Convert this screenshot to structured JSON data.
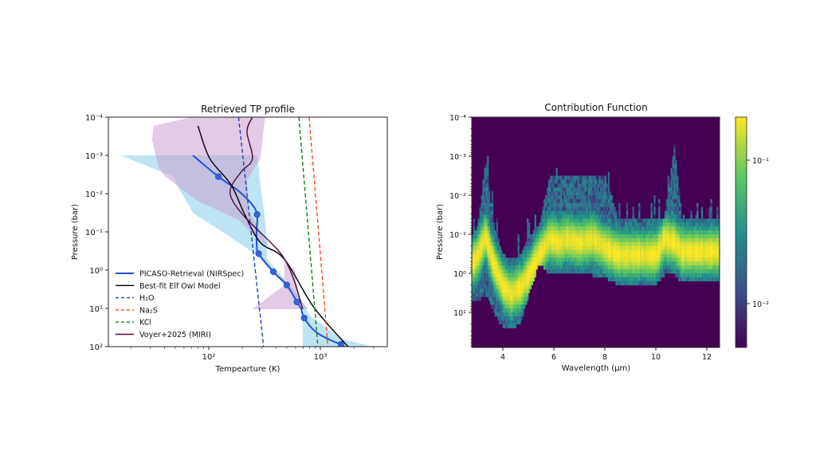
{
  "chart_data": [
    {
      "type": "line",
      "title": "Retrieved TP profile",
      "xlabel": "Tempearture (K)",
      "ylabel": "Pressure (bar)",
      "xscale": "log",
      "yscale": "log",
      "y_inverted": true,
      "xlim": [
        12.6,
        3980
      ],
      "ylim": [
        0.0001,
        100
      ],
      "x_ticks": [
        {
          "value": 100,
          "label": "10²"
        },
        {
          "value": 1000,
          "label": "10³"
        }
      ],
      "y_ticks": [
        {
          "value": 0.0001,
          "label": "10⁻⁴"
        },
        {
          "value": 0.001,
          "label": "10⁻³"
        },
        {
          "value": 0.01,
          "label": "10⁻²"
        },
        {
          "value": 0.1,
          "label": "10⁻¹"
        },
        {
          "value": 1,
          "label": "10⁰"
        },
        {
          "value": 10,
          "label": "10¹"
        },
        {
          "value": 100,
          "label": "10²"
        }
      ],
      "grid": false,
      "legend_position": "lower-left",
      "bands": [
        {
          "series": "PICASO-Retrieval (NIRSpec)",
          "color": "#87ceeb",
          "polygon_T_P": [
            [
              16.3,
              0.001
            ],
            [
              48.5,
              0.0036
            ],
            [
              53,
              0.0068
            ],
            [
              73,
              0.033
            ],
            [
              158,
              0.14
            ],
            [
              258,
              0.37
            ],
            [
              480,
              2.5
            ],
            [
              696,
              10
            ],
            [
              696,
              100
            ],
            [
              2900,
              100
            ],
            [
              1500,
              60
            ],
            [
              800,
              15
            ],
            [
              650,
              5
            ],
            [
              330,
              0.5
            ],
            [
              335,
              0.23
            ],
            [
              320,
              0.05
            ],
            [
              290,
              0.006
            ],
            [
              272,
              0.001
            ]
          ]
        },
        {
          "series": "Voyer+2025 (MIRI)",
          "color": "#c9a0d0",
          "polygon_T_P": [
            [
              32,
              0.00017
            ],
            [
              31,
              0.0004
            ],
            [
              36,
              0.0023
            ],
            [
              41,
              0.0036
            ],
            [
              78,
              0.015
            ],
            [
              187,
              0.05
            ],
            [
              272,
              0.15
            ],
            [
              475,
              0.5
            ],
            [
              475,
              2.5
            ],
            [
              246,
              10.5
            ],
            [
              775,
              10.5
            ],
            [
              640,
              5
            ],
            [
              590,
              1
            ],
            [
              341,
              0.23
            ],
            [
              230,
              0.03
            ],
            [
              220,
              0.0045
            ],
            [
              290,
              0.0012
            ],
            [
              320,
              0.0001
            ],
            [
              70,
              0.0001
            ]
          ]
        }
      ],
      "series": [
        {
          "name": "PICASO-Retrieval (NIRSpec)",
          "color": "#1f4fd6",
          "style": "solid",
          "markers": true,
          "points_T_P": [
            [
              72,
              0.001
            ],
            [
              122,
              0.0036
            ],
            [
              180,
              0.008
            ],
            [
              240,
              0.018
            ],
            [
              271,
              0.035
            ],
            [
              268,
              0.1
            ],
            [
              270,
              0.25
            ],
            [
              280,
              0.37
            ],
            [
              379,
              1.1
            ],
            [
              500,
              2.45
            ],
            [
              617,
              6.8
            ],
            [
              670,
              10
            ],
            [
              716,
              17.8
            ],
            [
              900,
              40
            ],
            [
              1200,
              65
            ],
            [
              1530,
              87
            ],
            [
              1650,
              100
            ]
          ],
          "marker_points_T_P": [
            [
              122,
              0.0036
            ],
            [
              271,
              0.035
            ],
            [
              280,
              0.37
            ],
            [
              379,
              1.1
            ],
            [
              500,
              2.45
            ],
            [
              617,
              6.8
            ],
            [
              716,
              17.8
            ],
            [
              1530,
              87
            ]
          ]
        },
        {
          "name": "Best-fit Elf Owl Model",
          "color": "#000000",
          "style": "solid",
          "points_T_P": [
            [
              80,
              0.00017
            ],
            [
              102,
              0.0012
            ],
            [
              158,
              0.0058
            ],
            [
              208,
              0.033
            ],
            [
              290,
              0.19
            ],
            [
              475,
              0.51
            ],
            [
              868,
              9.1
            ],
            [
              1770,
              100
            ]
          ]
        },
        {
          "name": "H₂O",
          "color": "#1f3fbf",
          "style": "dashed",
          "points_T_P": [
            [
              185,
              0.0001
            ],
            [
              310,
              100
            ]
          ]
        },
        {
          "name": "Na₂S",
          "color": "#ff4a1a",
          "style": "dashed",
          "points_T_P": [
            [
              793,
              0.0001
            ],
            [
              1170,
              100
            ]
          ]
        },
        {
          "name": "KCl",
          "color": "#1a7a1a",
          "style": "dashed",
          "points_T_P": [
            [
              642,
              0.0001
            ],
            [
              951,
              100
            ]
          ]
        },
        {
          "name": "Voyer+2025 (MIRI)",
          "color": "#4b0a3a",
          "style": "solid",
          "points_T_P": [
            [
              246,
              0.0001
            ],
            [
              220,
              0.00024
            ],
            [
              246,
              0.0012
            ],
            [
              197,
              0.0026
            ],
            [
              158,
              0.0068
            ],
            [
              163,
              0.015
            ],
            [
              220,
              0.047
            ],
            [
              425,
              0.32
            ],
            [
              558,
              1.33
            ],
            [
              696,
              10.5
            ]
          ]
        }
      ]
    },
    {
      "type": "heatmap",
      "title": "Contribution Function",
      "xlabel": "Wavelength (µm)",
      "ylabel": "Pressure (bar)",
      "xlim": [
        2.78,
        12.5
      ],
      "ylim": [
        0.0001,
        79
      ],
      "yscale": "log",
      "y_inverted": true,
      "x_ticks": [
        {
          "value": 4,
          "label": "4"
        },
        {
          "value": 6,
          "label": "6"
        },
        {
          "value": 8,
          "label": "8"
        },
        {
          "value": 10,
          "label": "10"
        },
        {
          "value": 12,
          "label": "12"
        }
      ],
      "y_ticks": [
        {
          "value": 0.0001,
          "label": "10⁻⁴"
        },
        {
          "value": 0.001,
          "label": "10⁻³"
        },
        {
          "value": 0.01,
          "label": "10⁻²"
        },
        {
          "value": 0.1,
          "label": "10⁻¹"
        },
        {
          "value": 1,
          "label": "10⁰"
        },
        {
          "value": 10,
          "label": "10¹"
        }
      ],
      "colormap": "viridis",
      "colorbar": {
        "scale": "log",
        "range": [
          0.005,
          0.2
        ],
        "ticks": [
          {
            "value": 0.1,
            "label": "10⁻¹"
          },
          {
            "value": 0.01,
            "label": "10⁻²"
          }
        ]
      },
      "ridge_profile": {
        "wavelength_um": [
          2.78,
          3.0,
          3.3,
          3.6,
          4.0,
          4.3,
          4.7,
          5.0,
          5.4,
          5.8,
          6.2,
          6.5,
          7.0,
          7.5,
          8.0,
          8.5,
          9.0,
          10.0,
          10.3,
          10.7,
          11.0,
          12.5
        ],
        "peak_pressure_bar": [
          0.5,
          0.3,
          0.1,
          0.5,
          2,
          3,
          2,
          1,
          0.3,
          0.12,
          0.15,
          0.12,
          0.15,
          0.12,
          0.2,
          0.3,
          0.3,
          0.3,
          0.12,
          0.15,
          0.25,
          0.25
        ],
        "top_pressure_bar": [
          0.1,
          0.05,
          0.001,
          0.05,
          0.3,
          0.4,
          0.3,
          0.1,
          0.05,
          0.003,
          0.003,
          0.003,
          0.003,
          0.003,
          0.003,
          0.035,
          0.035,
          0.035,
          0.035,
          0.0005,
          0.035,
          0.035
        ],
        "bottom_pressure_bar": [
          5,
          5,
          3,
          8,
          25,
          25,
          15,
          3,
          0.5,
          0.9,
          1,
          1,
          1,
          1,
          1.2,
          1.7,
          1.7,
          1.7,
          1,
          1,
          1.5,
          1.5
        ]
      }
    }
  ]
}
